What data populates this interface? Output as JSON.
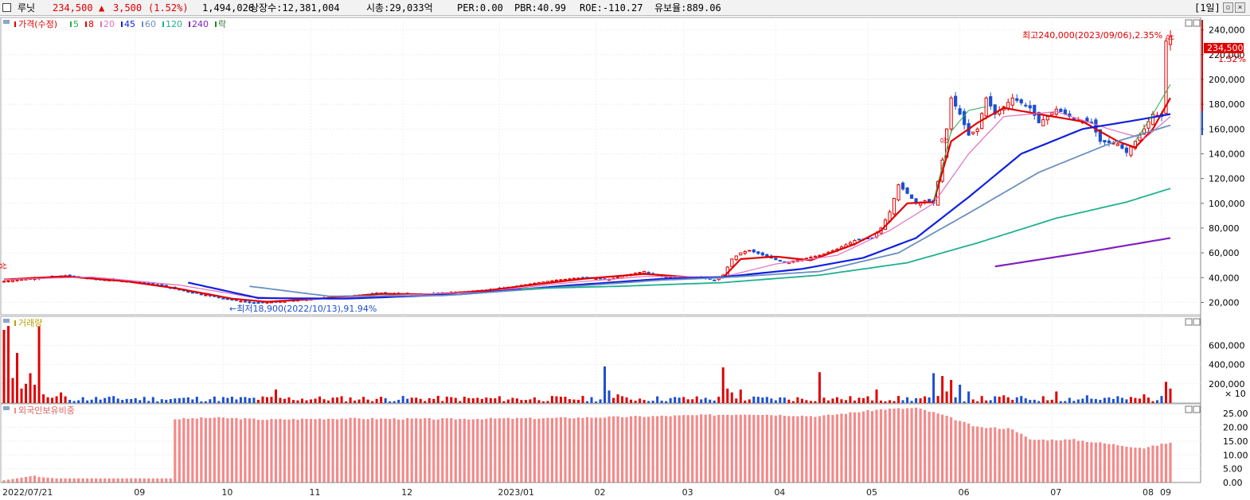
{
  "header": {
    "stock_name": "루닛",
    "price": "234,500",
    "change_arrow": "▲",
    "change": "3,500",
    "change_pct": "(1.52%)",
    "volume": "1,494,026",
    "listed_shares": "상장수:12,381,004",
    "market_cap": "시총:29,033억",
    "per": "PER:0.00",
    "pbr": "PBR:40.99",
    "roe": "ROE:-110.27",
    "float_ratio": "유보율:889.06",
    "period_button": "[1일]",
    "restore_icon": "restore-icon",
    "close_icon": "close-icon"
  },
  "price_panel": {
    "legend_title": "가격(수정)",
    "ma_legend": [
      {
        "label": "5",
        "color": "#22b14c"
      },
      {
        "label": "8",
        "color": "#e00000"
      },
      {
        "label": "20",
        "color": "#e070c0"
      },
      {
        "label": "45",
        "color": "#1020e0"
      },
      {
        "label": "60",
        "color": "#6a8fbf"
      },
      {
        "label": "120",
        "color": "#20b090"
      },
      {
        "label": "240",
        "color": "#8020c0"
      },
      {
        "label": "락",
        "color": "#2e7d32"
      }
    ],
    "high_annotation": "최고240,000(2023/09/06),2.35%",
    "low_annotation": "←최저18,900(2022/10/13),91.94%",
    "current_price_tag": "234,500",
    "current_pct_tag": "1.52%",
    "limit_up_marks": [
      "상",
      "상",
      "상"
    ]
  },
  "volume_panel": {
    "legend_title": "거래량",
    "multiplier": "× 10"
  },
  "foreign_panel": {
    "legend_title": "외국인보유비중"
  },
  "x_axis": {
    "labels": [
      "2022/07/21",
      "09",
      "10",
      "11",
      "12",
      "2023/01",
      "02",
      "03",
      "04",
      "05",
      "06",
      "07",
      "08",
      "09"
    ]
  },
  "chart_data": [
    {
      "type": "line",
      "name": "price-candlestick",
      "y_ticks": [
        "240,000",
        "220,000",
        "200,000",
        "180,000",
        "160,000",
        "140,000",
        "120,000",
        "100,000",
        "80,000",
        "60,000",
        "40,000",
        "20,000"
      ],
      "ylim": [
        10000,
        250000
      ],
      "close_anchors": [
        [
          0,
          37000
        ],
        [
          8,
          40000
        ],
        [
          14,
          41500
        ],
        [
          20,
          39000
        ],
        [
          28,
          37000
        ],
        [
          34,
          35000
        ],
        [
          40,
          30000
        ],
        [
          46,
          26000
        ],
        [
          52,
          22000
        ],
        [
          57,
          19500
        ],
        [
          62,
          20500
        ],
        [
          68,
          22000
        ],
        [
          74,
          24000
        ],
        [
          80,
          25500
        ],
        [
          86,
          27500
        ],
        [
          92,
          26500
        ],
        [
          98,
          27000
        ],
        [
          104,
          28500
        ],
        [
          110,
          30000
        ],
        [
          116,
          32500
        ],
        [
          120,
          35000
        ],
        [
          126,
          38000
        ],
        [
          132,
          40000
        ],
        [
          138,
          38500
        ],
        [
          142,
          42000
        ],
        [
          146,
          45000
        ],
        [
          150,
          41000
        ],
        [
          154,
          40000
        ],
        [
          158,
          40500
        ],
        [
          162,
          38000
        ],
        [
          164,
          42000
        ],
        [
          166,
          55000
        ],
        [
          168,
          60000
        ],
        [
          170,
          62000
        ],
        [
          174,
          57000
        ],
        [
          178,
          52000
        ],
        [
          182,
          55000
        ],
        [
          186,
          58000
        ],
        [
          190,
          63000
        ],
        [
          194,
          70000
        ],
        [
          198,
          72000
        ],
        [
          200,
          80000
        ],
        [
          202,
          93000
        ],
        [
          204,
          115000
        ],
        [
          206,
          108000
        ],
        [
          208,
          100000
        ],
        [
          210,
          102000
        ],
        [
          212,
          100000
        ],
        [
          214,
          135000
        ],
        [
          216,
          185000
        ],
        [
          218,
          172000
        ],
        [
          220,
          155000
        ],
        [
          222,
          160000
        ],
        [
          224,
          185000
        ],
        [
          226,
          172000
        ],
        [
          228,
          178000
        ],
        [
          230,
          185000
        ],
        [
          234,
          177000
        ],
        [
          236,
          165000
        ],
        [
          238,
          170000
        ],
        [
          240,
          176000
        ],
        [
          244,
          168000
        ],
        [
          248,
          165000
        ],
        [
          250,
          150000
        ],
        [
          254,
          148000
        ],
        [
          256,
          141000
        ],
        [
          258,
          150000
        ],
        [
          260,
          160000
        ],
        [
          262,
          172000
        ],
        [
          264,
          170000
        ],
        [
          265,
          231000
        ],
        [
          266,
          234500
        ]
      ],
      "moving_averages": [
        {
          "label": "8",
          "anchors": [
            [
              0,
              38500
            ],
            [
              14,
              41000
            ],
            [
              28,
              37000
            ],
            [
              40,
              31000
            ],
            [
              52,
              23000
            ],
            [
              60,
              20500
            ],
            [
              74,
              23500
            ],
            [
              86,
              27000
            ],
            [
              98,
              26500
            ],
            [
              110,
              29500
            ],
            [
              120,
              34000
            ],
            [
              132,
              39000
            ],
            [
              146,
              43000
            ],
            [
              158,
              40000
            ],
            [
              164,
              40000
            ],
            [
              168,
              55000
            ],
            [
              176,
              57000
            ],
            [
              184,
              54000
            ],
            [
              194,
              67000
            ],
            [
              200,
              78000
            ],
            [
              206,
              100000
            ],
            [
              212,
              101000
            ],
            [
              216,
              150000
            ],
            [
              222,
              165000
            ],
            [
              228,
              177000
            ],
            [
              236,
              172000
            ],
            [
              246,
              166000
            ],
            [
              254,
              150000
            ],
            [
              258,
              145000
            ],
            [
              262,
              160000
            ],
            [
              266,
              185000
            ]
          ]
        },
        {
          "label": "20",
          "anchors": [
            [
              0,
              38500
            ],
            [
              20,
              40500
            ],
            [
              40,
              34000
            ],
            [
              56,
              24500
            ],
            [
              70,
              22500
            ],
            [
              90,
              26000
            ],
            [
              110,
              28500
            ],
            [
              126,
              35000
            ],
            [
              146,
              41000
            ],
            [
              164,
              40500
            ],
            [
              176,
              51000
            ],
            [
              190,
              58000
            ],
            [
              202,
              78000
            ],
            [
              212,
              100000
            ],
            [
              220,
              140000
            ],
            [
              228,
              170000
            ],
            [
              240,
              174000
            ],
            [
              252,
              160000
            ],
            [
              260,
              152000
            ],
            [
              266,
              170000
            ]
          ]
        },
        {
          "label": "45",
          "anchors": [
            [
              42,
              36000
            ],
            [
              58,
              23500
            ],
            [
              78,
              23000
            ],
            [
              104,
              26500
            ],
            [
              130,
              34000
            ],
            [
              150,
              39000
            ],
            [
              164,
              40500
            ],
            [
              182,
              47000
            ],
            [
              196,
              56000
            ],
            [
              208,
              72000
            ],
            [
              220,
              105000
            ],
            [
              232,
              140000
            ],
            [
              246,
              160000
            ],
            [
              258,
              167000
            ],
            [
              266,
              172000
            ]
          ]
        },
        {
          "label": "60",
          "anchors": [
            [
              56,
              33000
            ],
            [
              74,
              25000
            ],
            [
              100,
              25500
            ],
            [
              124,
              31500
            ],
            [
              150,
              38000
            ],
            [
              164,
              40000
            ],
            [
              186,
              45000
            ],
            [
              204,
              60000
            ],
            [
              220,
              92000
            ],
            [
              236,
              125000
            ],
            [
              252,
              148000
            ],
            [
              266,
              163000
            ]
          ]
        },
        {
          "label": "120",
          "anchors": [
            [
              118,
              31000
            ],
            [
              140,
              33000
            ],
            [
              164,
              36000
            ],
            [
              186,
              42000
            ],
            [
              206,
              52000
            ],
            [
              222,
              68000
            ],
            [
              240,
              88000
            ],
            [
              256,
              101000
            ],
            [
              266,
              112000
            ]
          ]
        },
        {
          "label": "240",
          "anchors": [
            [
              226,
              49000
            ],
            [
              246,
              60000
            ],
            [
              266,
              72000
            ]
          ]
        }
      ]
    },
    {
      "type": "bar",
      "name": "volume",
      "y_ticks": [
        "600,000",
        "400,000",
        "200,000"
      ],
      "ylim": [
        0,
        900000
      ],
      "bars": [
        [
          0,
          760000
        ],
        [
          1,
          800000
        ],
        [
          2,
          260000
        ],
        [
          3,
          520000
        ],
        [
          4,
          150000
        ],
        [
          5,
          200000
        ],
        [
          6,
          310000
        ],
        [
          7,
          190000
        ],
        [
          8,
          800000
        ],
        [
          9,
          90000
        ],
        [
          10,
          60000
        ],
        [
          12,
          70000
        ],
        [
          13,
          110000
        ],
        [
          36,
          40000
        ],
        [
          62,
          140000
        ],
        [
          137,
          380000
        ],
        [
          138,
          130000
        ],
        [
          140,
          90000
        ],
        [
          164,
          370000
        ],
        [
          165,
          150000
        ],
        [
          166,
          110000
        ],
        [
          168,
          140000
        ],
        [
          186,
          320000
        ],
        [
          199,
          140000
        ],
        [
          212,
          310000
        ],
        [
          214,
          280000
        ],
        [
          215,
          120000
        ],
        [
          216,
          240000
        ],
        [
          218,
          190000
        ],
        [
          220,
          120000
        ],
        [
          228,
          80000
        ],
        [
          240,
          120000
        ],
        [
          247,
          80000
        ],
        [
          260,
          90000
        ],
        [
          265,
          220000
        ],
        [
          266,
          150000
        ]
      ]
    },
    {
      "type": "bar",
      "name": "foreign-ownership",
      "y_ticks": [
        "25.00",
        "20.00",
        "15.00",
        "10.00",
        "5.00",
        "0.00"
      ],
      "ylim": [
        0,
        28.5
      ],
      "anchors": [
        [
          0,
          0.8
        ],
        [
          7,
          2.5
        ],
        [
          8,
          2.0
        ],
        [
          12,
          1.5
        ],
        [
          38,
          1.5
        ],
        [
          39,
          23.0
        ],
        [
          48,
          23.5
        ],
        [
          60,
          22.8
        ],
        [
          76,
          23.2
        ],
        [
          100,
          23.0
        ],
        [
          124,
          23.3
        ],
        [
          148,
          24.0
        ],
        [
          170,
          24.8
        ],
        [
          186,
          24.0
        ],
        [
          200,
          26.5
        ],
        [
          208,
          27.0
        ],
        [
          214,
          24.5
        ],
        [
          222,
          20.0
        ],
        [
          230,
          19.5
        ],
        [
          234,
          15.5
        ],
        [
          244,
          15.5
        ],
        [
          252,
          14.0
        ],
        [
          260,
          12.5
        ],
        [
          266,
          14.5
        ]
      ]
    }
  ]
}
